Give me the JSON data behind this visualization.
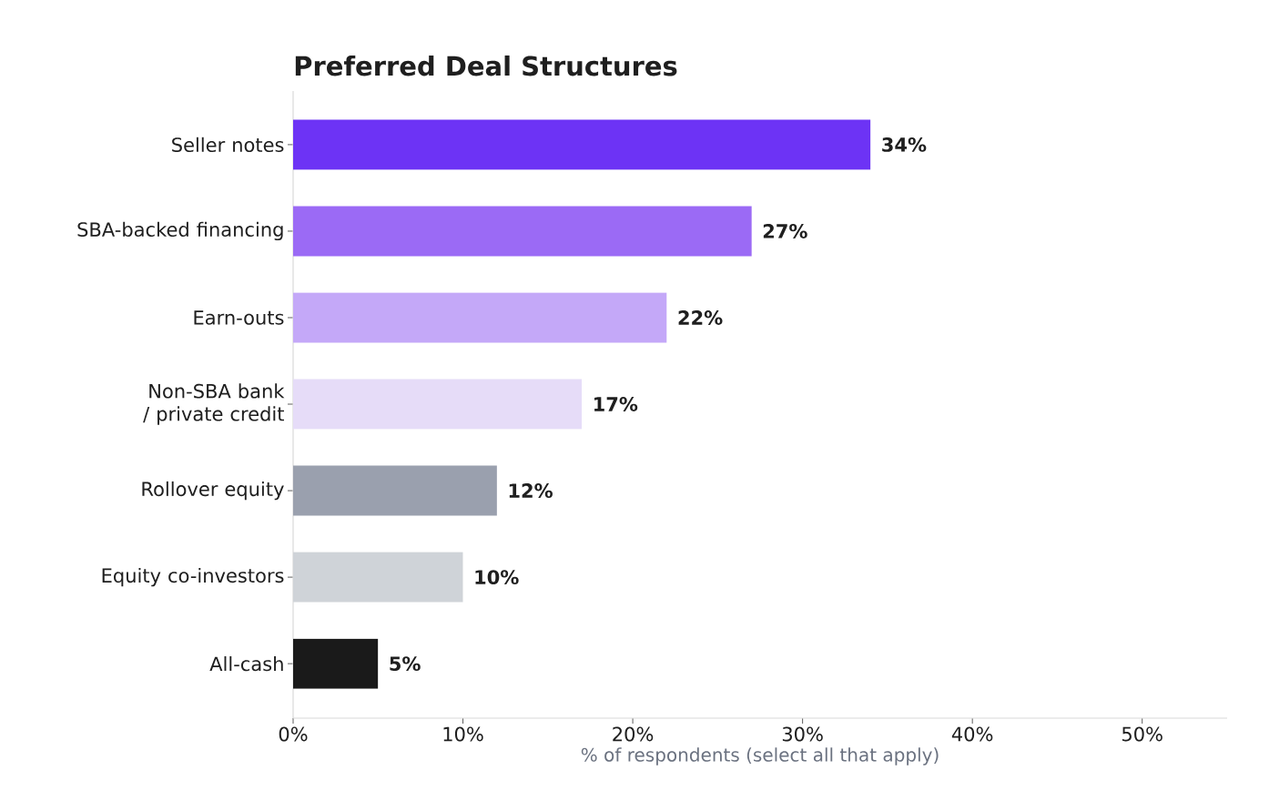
{
  "chart_data": {
    "type": "bar",
    "orientation": "horizontal",
    "title": "Preferred Deal Structures",
    "xlabel": "% of respondents (select all that apply)",
    "categories": [
      "Seller notes",
      "SBA-backed financing",
      "Earn-outs",
      "Non-SBA bank / private credit",
      "Rollover equity",
      "Equity co-investors",
      "All-cash"
    ],
    "values": [
      34,
      27,
      22,
      17,
      12,
      10,
      5
    ],
    "value_labels": [
      "34%",
      "27%",
      "22%",
      "17%",
      "12%",
      "10%",
      "5%"
    ],
    "colors": [
      "#6d33f5",
      "#9b6af5",
      "#c4a8f8",
      "#e6dcf8",
      "#9aa0ae",
      "#cfd3d8",
      "#1a1a1a"
    ],
    "xlim": [
      0,
      55
    ],
    "xticks": [
      {
        "value": 0,
        "label": "0%"
      },
      {
        "value": 10,
        "label": "10%"
      },
      {
        "value": 20,
        "label": "20%"
      },
      {
        "value": 30,
        "label": "30%"
      },
      {
        "value": 40,
        "label": "40%"
      },
      {
        "value": 50,
        "label": "50%"
      }
    ]
  }
}
